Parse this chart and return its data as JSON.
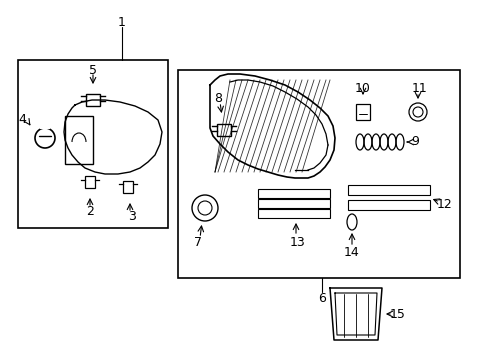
{
  "bg_color": "#ffffff",
  "line_color": "#000000",
  "text_color": "#000000",
  "fig_width": 4.89,
  "fig_height": 3.6,
  "dpi": 100
}
